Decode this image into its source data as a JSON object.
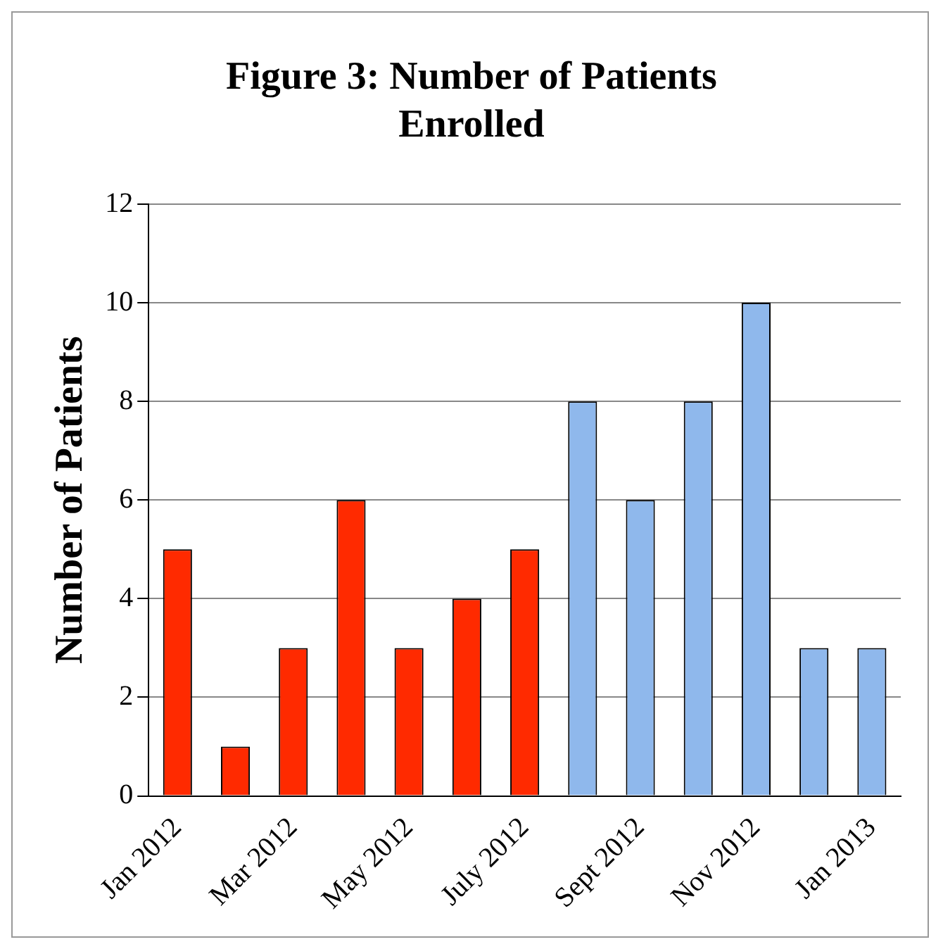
{
  "chart_data": {
    "type": "bar",
    "title": "Figure 3: Number of Patients Enrolled",
    "ylabel": "Number of Patients",
    "categories": [
      "Jan 2012",
      null,
      "Mar 2012",
      null,
      "May 2012",
      null,
      "July 2012",
      null,
      "Sept 2012",
      null,
      "Nov 2012",
      null,
      "Jan 2013"
    ],
    "values": [
      5,
      1,
      3,
      6,
      3,
      4,
      5,
      8,
      6,
      8,
      10,
      3,
      3
    ],
    "colors": [
      "#ff2a00",
      "#ff2a00",
      "#ff2a00",
      "#ff2a00",
      "#ff2a00",
      "#ff2a00",
      "#ff2a00",
      "#8fb8ec",
      "#8fb8ec",
      "#8fb8ec",
      "#8fb8ec",
      "#8fb8ec",
      "#8fb8ec"
    ],
    "ylim": [
      0,
      12
    ],
    "yticks": [
      0,
      2,
      4,
      6,
      8,
      10,
      12
    ],
    "grid": "y",
    "legend": false
  }
}
